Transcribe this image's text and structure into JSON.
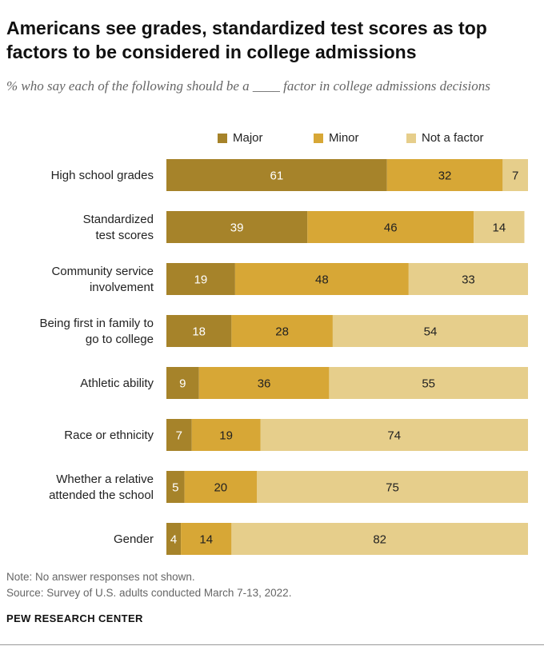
{
  "header": {
    "title": "Americans see grades, standardized test scores as top factors to be considered in college admissions",
    "subtitle": "% who say each of the following should be a ____ factor in college admissions decisions"
  },
  "colors": {
    "major": "#A6832A",
    "minor": "#D7A736",
    "not_a_factor": "#E6CE8B",
    "label_light": "#ffffff",
    "label_dark": "#222222"
  },
  "chart_data": {
    "type": "bar",
    "orientation": "horizontal",
    "stacked": true,
    "categories": [
      [
        "High school grades"
      ],
      [
        "Standardized",
        "test scores"
      ],
      [
        "Community service",
        "involvement"
      ],
      [
        "Being first in family to",
        "go to college"
      ],
      [
        "Athletic ability"
      ],
      [
        "Race or ethnicity"
      ],
      [
        "Whether a relative",
        "attended the school"
      ],
      [
        "Gender"
      ]
    ],
    "series": [
      {
        "name": "Major",
        "values": [
          61,
          39,
          19,
          18,
          9,
          7,
          5,
          4
        ]
      },
      {
        "name": "Minor",
        "values": [
          32,
          46,
          48,
          28,
          36,
          19,
          20,
          14
        ]
      },
      {
        "name": "Not a factor",
        "values": [
          7,
          14,
          33,
          54,
          55,
          74,
          75,
          82
        ]
      }
    ],
    "legend_position": "top",
    "grid": false
  },
  "footer": {
    "note": "Note: No answer responses not shown.",
    "source": "Source: Survey of U.S. adults conducted March 7-13, 2022.",
    "brand": "PEW RESEARCH CENTER"
  }
}
